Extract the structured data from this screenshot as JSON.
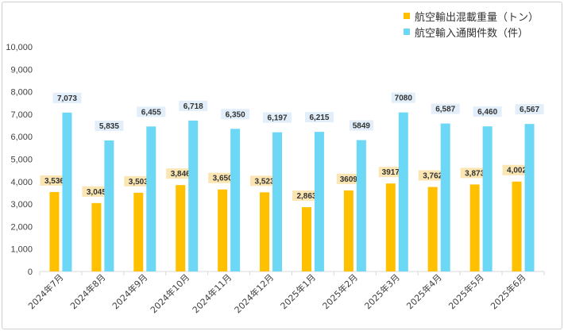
{
  "chart_data": {
    "type": "bar",
    "categories": [
      "2024年7月",
      "2024年8月",
      "2024年9月",
      "2024年10月",
      "2024年11月",
      "2024年12月",
      "2025年1月",
      "2025年2月",
      "2025年3月",
      "2025年4月",
      "2025年5月",
      "2025年6月"
    ],
    "series": [
      {
        "name": "航空輸出混載重量（トン）",
        "color": "#ffc000",
        "label_bg": "#fbe6b3",
        "values": [
          3536,
          3045,
          3503,
          3846,
          3650,
          3523,
          2863,
          3609,
          3917,
          3762,
          3873,
          4002
        ],
        "labels": [
          "3,536",
          "3,045",
          "3,503",
          "3,846",
          "3,650",
          "3,523",
          "2,863",
          "3609",
          "3917",
          "3,762",
          "3,873",
          "4,002"
        ]
      },
      {
        "name": "航空輸入通関件数（件）",
        "color": "#6dd8f5",
        "label_bg": "#e2eefa",
        "values": [
          7073,
          5835,
          6455,
          6718,
          6350,
          6197,
          6215,
          5849,
          7080,
          6587,
          6460,
          6567
        ],
        "labels": [
          "7,073",
          "5,835",
          "6,455",
          "6,718",
          "6,350",
          "6,197",
          "6,215",
          "5849",
          "7080",
          "6,587",
          "6,460",
          "6,567"
        ]
      }
    ],
    "ylim": [
      0,
      10000
    ],
    "yticks": [
      0,
      1000,
      2000,
      3000,
      4000,
      5000,
      6000,
      7000,
      8000,
      9000,
      10000
    ],
    "ytick_labels": [
      "0",
      "1,000",
      "2,000",
      "3,000",
      "4,000",
      "5,000",
      "6,000",
      "7,000",
      "8,000",
      "9,000",
      "10,000"
    ],
    "grid": false,
    "legend": "top-right"
  }
}
